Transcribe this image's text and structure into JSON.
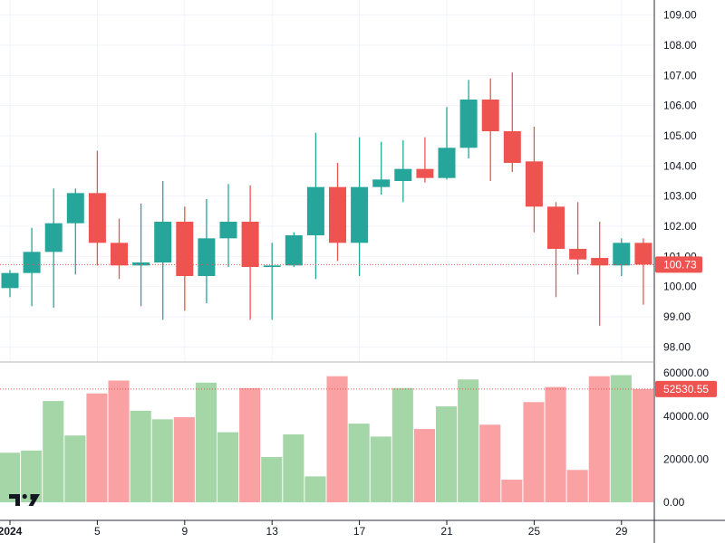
{
  "chart_data": {
    "type": "candlestick",
    "price_axis": {
      "ticks": [
        "98.00",
        "99.00",
        "100.00",
        "101.00",
        "102.00",
        "103.00",
        "104.00",
        "105.00",
        "106.00",
        "107.00",
        "108.00",
        "109.00"
      ],
      "range": [
        97.5,
        109.5
      ],
      "last_price_label": "100.73",
      "last_price": 100.73
    },
    "volume_axis": {
      "ticks": [
        "0.00",
        "20000.00",
        "40000.00",
        "60000.00"
      ],
      "range": [
        0,
        63000
      ],
      "last_volume_label": "52530.55",
      "last_volume": 52530.55
    },
    "time_axis": {
      "ticks": [
        {
          "label": "2024",
          "date": "2024-01-01"
        },
        {
          "label": "5",
          "date": "2024-01-05"
        },
        {
          "label": "9",
          "date": "2024-01-09"
        },
        {
          "label": "13",
          "date": "2024-01-13"
        },
        {
          "label": "17",
          "date": "2024-01-17"
        },
        {
          "label": "21",
          "date": "2024-01-21"
        },
        {
          "label": "25",
          "date": "2024-01-25"
        },
        {
          "label": "29",
          "date": "2024-01-29"
        }
      ]
    },
    "candles": [
      {
        "date": "2024-01-01",
        "open": 99.95,
        "high": 100.55,
        "low": 99.65,
        "close": 100.45
      },
      {
        "date": "2024-01-02",
        "open": 100.45,
        "high": 101.95,
        "low": 99.35,
        "close": 101.15
      },
      {
        "date": "2024-01-03",
        "open": 101.15,
        "high": 103.25,
        "low": 99.3,
        "close": 102.1
      },
      {
        "date": "2024-01-04",
        "open": 102.1,
        "high": 103.25,
        "low": 100.4,
        "close": 103.1
      },
      {
        "date": "2024-01-05",
        "open": 103.1,
        "high": 104.5,
        "low": 100.7,
        "close": 101.45
      },
      {
        "date": "2024-01-06",
        "open": 101.45,
        "high": 102.25,
        "low": 100.25,
        "close": 100.7
      },
      {
        "date": "2024-01-07",
        "open": 100.7,
        "high": 102.75,
        "low": 99.35,
        "close": 100.8
      },
      {
        "date": "2024-01-08",
        "open": 100.8,
        "high": 103.5,
        "low": 98.9,
        "close": 102.15
      },
      {
        "date": "2024-01-09",
        "open": 102.15,
        "high": 102.65,
        "low": 99.2,
        "close": 100.35
      },
      {
        "date": "2024-01-10",
        "open": 100.35,
        "high": 102.9,
        "low": 99.45,
        "close": 101.6
      },
      {
        "date": "2024-01-11",
        "open": 101.6,
        "high": 103.4,
        "low": 100.65,
        "close": 102.15
      },
      {
        "date": "2024-01-12",
        "open": 102.15,
        "high": 103.35,
        "low": 98.9,
        "close": 100.65
      },
      {
        "date": "2024-01-13",
        "open": 100.65,
        "high": 101.45,
        "low": 98.9,
        "close": 100.7
      },
      {
        "date": "2024-01-14",
        "open": 100.7,
        "high": 101.8,
        "low": 100.65,
        "close": 101.7
      },
      {
        "date": "2024-01-15",
        "open": 101.7,
        "high": 105.1,
        "low": 100.25,
        "close": 103.3
      },
      {
        "date": "2024-01-16",
        "open": 103.3,
        "high": 104.1,
        "low": 100.85,
        "close": 101.45
      },
      {
        "date": "2024-01-17",
        "open": 101.45,
        "high": 104.95,
        "low": 100.35,
        "close": 103.3
      },
      {
        "date": "2024-01-18",
        "open": 103.3,
        "high": 104.8,
        "low": 103.05,
        "close": 103.55
      },
      {
        "date": "2024-01-19",
        "open": 103.5,
        "high": 104.85,
        "low": 102.8,
        "close": 103.9
      },
      {
        "date": "2024-01-20",
        "open": 103.9,
        "high": 104.95,
        "low": 103.45,
        "close": 103.6
      },
      {
        "date": "2024-01-21",
        "open": 103.6,
        "high": 105.95,
        "low": 103.55,
        "close": 104.6
      },
      {
        "date": "2024-01-22",
        "open": 104.6,
        "high": 106.85,
        "low": 104.25,
        "close": 106.2
      },
      {
        "date": "2024-01-23",
        "open": 106.2,
        "high": 106.9,
        "low": 103.5,
        "close": 105.15
      },
      {
        "date": "2024-01-24",
        "open": 105.15,
        "high": 107.1,
        "low": 103.8,
        "close": 104.1
      },
      {
        "date": "2024-01-25",
        "open": 104.15,
        "high": 105.3,
        "low": 101.8,
        "close": 102.65
      },
      {
        "date": "2024-01-26",
        "open": 102.65,
        "high": 102.8,
        "low": 99.65,
        "close": 101.25
      },
      {
        "date": "2024-01-27",
        "open": 101.25,
        "high": 102.8,
        "low": 100.4,
        "close": 100.9
      },
      {
        "date": "2024-01-28",
        "open": 100.95,
        "high": 102.15,
        "low": 98.7,
        "close": 100.7
      },
      {
        "date": "2024-01-29",
        "open": 100.7,
        "high": 101.6,
        "low": 100.35,
        "close": 101.45
      },
      {
        "date": "2024-01-30",
        "open": 101.45,
        "high": 101.6,
        "low": 99.4,
        "close": 100.73
      }
    ],
    "volumes": [
      23000,
      24000,
      47000,
      31000,
      50500,
      56500,
      42500,
      38500,
      39500,
      55500,
      32500,
      53000,
      21000,
      31500,
      12000,
      58500,
      36500,
      30500,
      53000,
      34000,
      44500,
      57000,
      36000,
      10500,
      46500,
      53500,
      15000,
      58500,
      59000,
      52530.55
    ],
    "colors": {
      "up": "#26a69a",
      "down": "#ef5350",
      "volume_up": "#a5d6a7",
      "volume_down": "#faa1a4",
      "grid": "#f0f3fa",
      "axis_text": "#131722",
      "price_line": "#ef5350"
    },
    "grid": true,
    "watermark": "TV"
  }
}
